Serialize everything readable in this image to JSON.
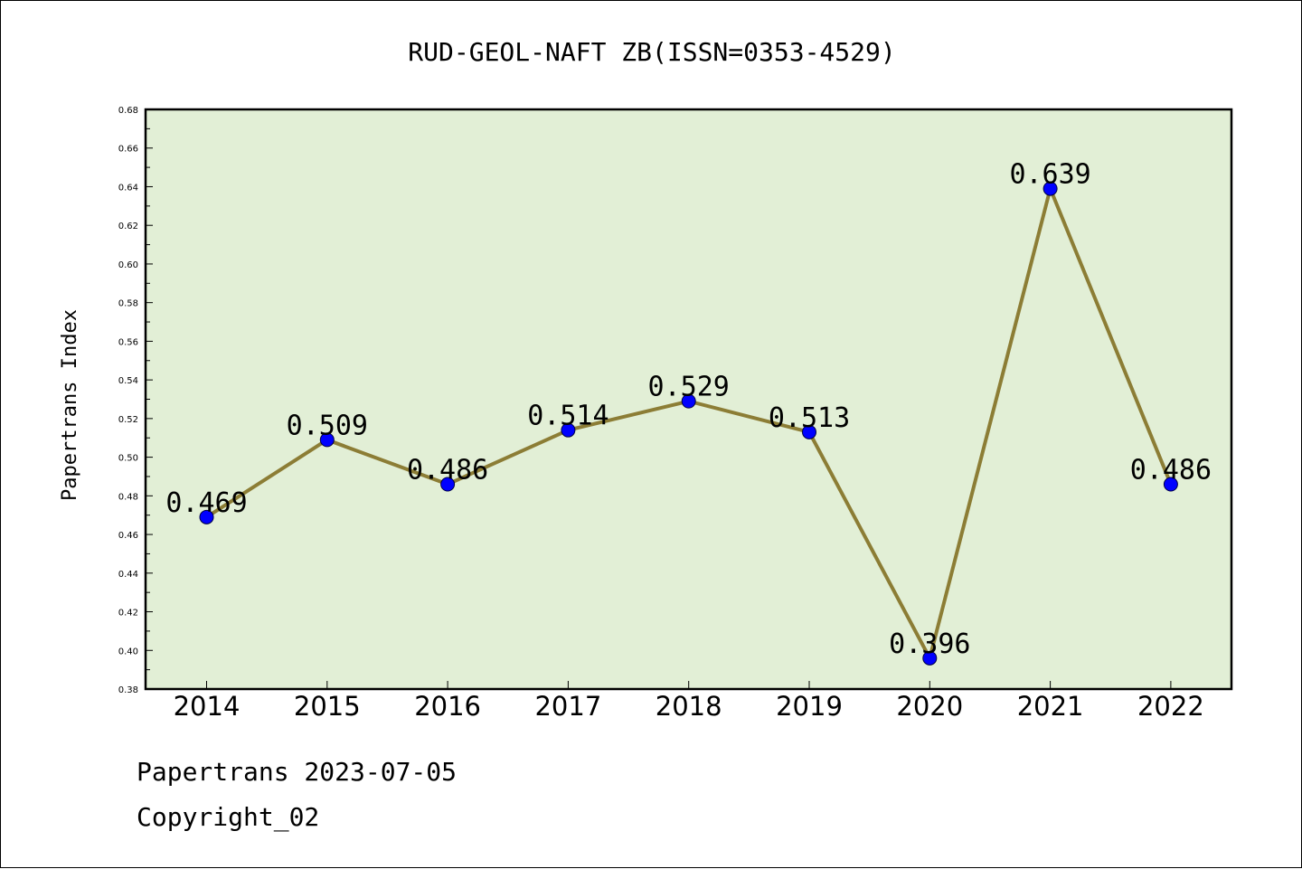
{
  "chart_data": {
    "type": "line",
    "title": "RUD-GEOL-NAFT ZB(ISSN=0353-4529)",
    "xlabel": "",
    "ylabel": "Papertrans Index",
    "categories": [
      "2014",
      "2015",
      "2016",
      "2017",
      "2018",
      "2019",
      "2020",
      "2021",
      "2022"
    ],
    "values": [
      0.469,
      0.509,
      0.486,
      0.514,
      0.529,
      0.513,
      0.396,
      0.639,
      0.486
    ],
    "data_labels": [
      "0.469",
      "0.509",
      "0.486",
      "0.514",
      "0.529",
      "0.513",
      "0.396",
      "0.639",
      "0.486"
    ],
    "ylim": [
      0.38,
      0.68
    ],
    "yticks": [
      "0.38",
      "0.40",
      "0.42",
      "0.44",
      "0.46",
      "0.48",
      "0.50",
      "0.52",
      "0.54",
      "0.56",
      "0.58",
      "0.60",
      "0.62",
      "0.64",
      "0.66",
      "0.68"
    ],
    "grid": false,
    "colors": {
      "plot_background": "#e2efd6",
      "line": "#8c7d35",
      "marker": "#0000ff"
    }
  },
  "footer": {
    "date_line": "Papertrans 2023-07-05",
    "copyright": "Copyright_02"
  }
}
